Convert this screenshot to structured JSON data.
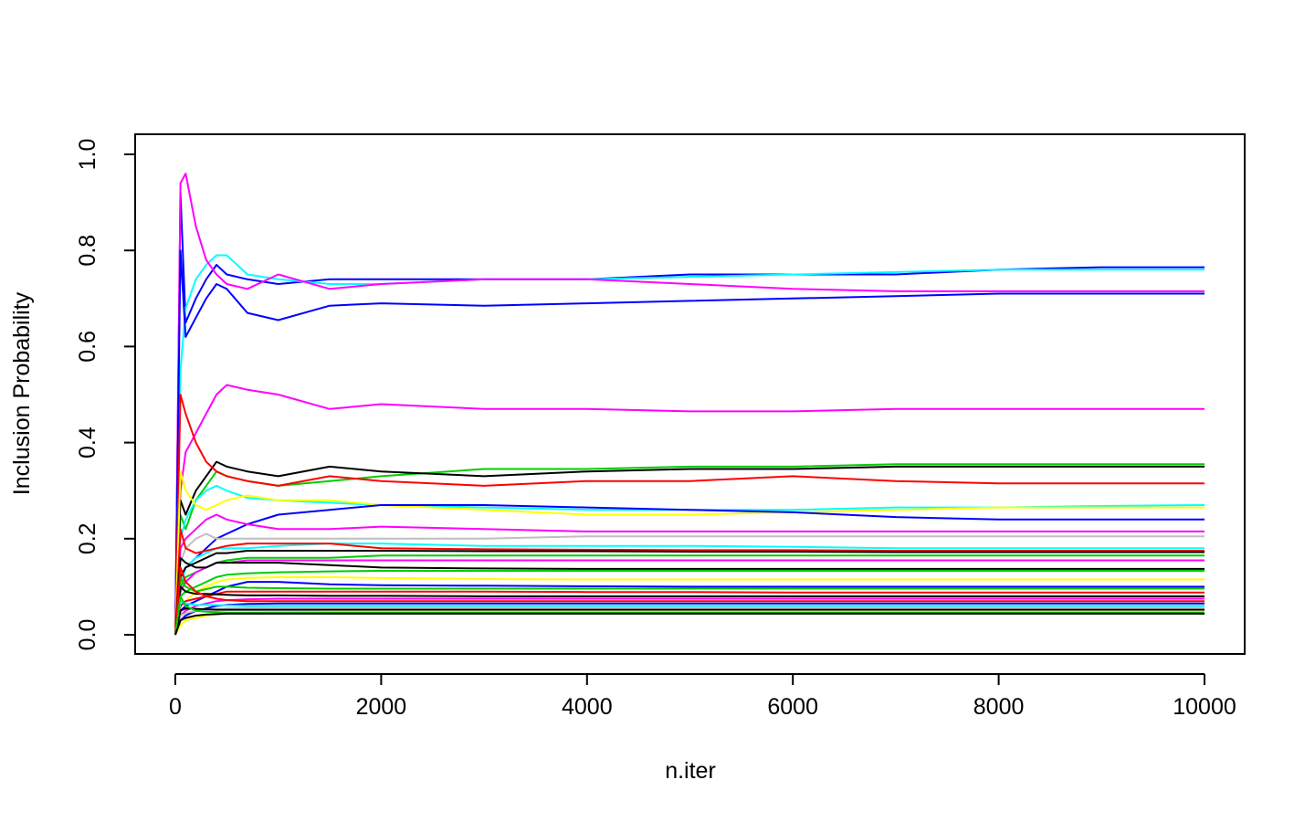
{
  "chart_data": {
    "type": "line",
    "title": "",
    "xlabel": "n.iter",
    "ylabel": "Inclusion Probability",
    "xlim": [
      0,
      10000
    ],
    "ylim": [
      0,
      1
    ],
    "x_ticks": [
      0,
      2000,
      4000,
      6000,
      8000,
      10000
    ],
    "x_tick_labels": [
      "0",
      "2000",
      "4000",
      "6000",
      "8000",
      "10000"
    ],
    "y_ticks": [
      0,
      0.2,
      0.4,
      0.6,
      0.8,
      1
    ],
    "y_tick_labels": [
      "0.0",
      "0.2",
      "0.4",
      "0.6",
      "0.8",
      "1.0"
    ],
    "grid": false,
    "legend": "none",
    "x": [
      0,
      50,
      100,
      200,
      300,
      400,
      500,
      700,
      1000,
      1500,
      2000,
      3000,
      4000,
      5000,
      6000,
      7000,
      8000,
      9000,
      10000
    ],
    "series": [
      {
        "color": "#0000ff",
        "values": [
          0.0,
          0.92,
          0.65,
          0.7,
          0.74,
          0.77,
          0.75,
          0.74,
          0.73,
          0.74,
          0.74,
          0.74,
          0.74,
          0.75,
          0.75,
          0.75,
          0.76,
          0.765,
          0.765
        ]
      },
      {
        "color": "#00ffff",
        "values": [
          0.0,
          0.55,
          0.68,
          0.74,
          0.77,
          0.79,
          0.79,
          0.75,
          0.74,
          0.73,
          0.73,
          0.74,
          0.74,
          0.745,
          0.75,
          0.755,
          0.76,
          0.76,
          0.76
        ]
      },
      {
        "color": "#ff00ff",
        "values": [
          0.0,
          0.94,
          0.96,
          0.85,
          0.78,
          0.75,
          0.73,
          0.72,
          0.75,
          0.72,
          0.73,
          0.74,
          0.74,
          0.73,
          0.72,
          0.715,
          0.715,
          0.715,
          0.715
        ]
      },
      {
        "color": "#0000ff",
        "values": [
          0.0,
          0.8,
          0.62,
          0.66,
          0.7,
          0.73,
          0.72,
          0.67,
          0.655,
          0.685,
          0.69,
          0.685,
          0.69,
          0.695,
          0.7,
          0.705,
          0.71,
          0.71,
          0.71
        ]
      },
      {
        "color": "#ff00ff",
        "values": [
          0.0,
          0.3,
          0.38,
          0.42,
          0.46,
          0.5,
          0.52,
          0.51,
          0.5,
          0.47,
          0.48,
          0.47,
          0.47,
          0.465,
          0.465,
          0.47,
          0.47,
          0.47,
          0.47
        ]
      },
      {
        "color": "#00cd00",
        "values": [
          0.0,
          0.25,
          0.22,
          0.28,
          0.31,
          0.34,
          0.33,
          0.32,
          0.31,
          0.32,
          0.33,
          0.345,
          0.345,
          0.35,
          0.35,
          0.355,
          0.355,
          0.355,
          0.355
        ]
      },
      {
        "color": "#000000",
        "values": [
          0.0,
          0.28,
          0.25,
          0.3,
          0.33,
          0.36,
          0.35,
          0.34,
          0.33,
          0.35,
          0.34,
          0.33,
          0.34,
          0.345,
          0.345,
          0.35,
          0.35,
          0.35,
          0.35
        ]
      },
      {
        "color": "#ff0000",
        "values": [
          0.0,
          0.5,
          0.46,
          0.4,
          0.36,
          0.34,
          0.33,
          0.32,
          0.31,
          0.33,
          0.32,
          0.31,
          0.32,
          0.32,
          0.33,
          0.32,
          0.315,
          0.315,
          0.315
        ]
      },
      {
        "color": "#00ffff",
        "values": [
          0.0,
          0.2,
          0.24,
          0.28,
          0.3,
          0.31,
          0.3,
          0.285,
          0.28,
          0.275,
          0.27,
          0.265,
          0.26,
          0.26,
          0.26,
          0.265,
          0.265,
          0.268,
          0.27
        ]
      },
      {
        "color": "#ffff00",
        "values": [
          0.0,
          0.34,
          0.3,
          0.27,
          0.26,
          0.27,
          0.28,
          0.29,
          0.28,
          0.28,
          0.27,
          0.26,
          0.25,
          0.25,
          0.255,
          0.26,
          0.265,
          0.265,
          0.265
        ]
      },
      {
        "color": "#0000ff",
        "values": [
          0.0,
          0.12,
          0.14,
          0.16,
          0.18,
          0.2,
          0.21,
          0.23,
          0.25,
          0.26,
          0.27,
          0.27,
          0.265,
          0.26,
          0.255,
          0.245,
          0.24,
          0.24,
          0.24
        ]
      },
      {
        "color": "#ff00ff",
        "values": [
          0.0,
          0.18,
          0.2,
          0.22,
          0.24,
          0.25,
          0.24,
          0.23,
          0.22,
          0.22,
          0.225,
          0.22,
          0.215,
          0.215,
          0.215,
          0.215,
          0.215,
          0.215,
          0.215
        ]
      },
      {
        "color": "#bebebe",
        "values": [
          0.0,
          0.15,
          0.18,
          0.2,
          0.21,
          0.2,
          0.2,
          0.2,
          0.2,
          0.2,
          0.2,
          0.2,
          0.205,
          0.205,
          0.205,
          0.205,
          0.205,
          0.205,
          0.205
        ]
      },
      {
        "color": "#00ffff",
        "values": [
          0.0,
          0.1,
          0.14,
          0.16,
          0.17,
          0.18,
          0.18,
          0.18,
          0.185,
          0.19,
          0.19,
          0.185,
          0.185,
          0.185,
          0.183,
          0.18,
          0.18,
          0.18,
          0.18
        ]
      },
      {
        "color": "#ff0000",
        "values": [
          0.0,
          0.22,
          0.18,
          0.17,
          0.175,
          0.18,
          0.185,
          0.19,
          0.19,
          0.19,
          0.18,
          0.178,
          0.177,
          0.176,
          0.176,
          0.175,
          0.175,
          0.175,
          0.175
        ]
      },
      {
        "color": "#000000",
        "values": [
          0.0,
          0.12,
          0.14,
          0.15,
          0.16,
          0.17,
          0.17,
          0.175,
          0.175,
          0.175,
          0.175,
          0.174,
          0.174,
          0.173,
          0.173,
          0.172,
          0.172,
          0.172,
          0.172
        ]
      },
      {
        "color": "#00cd00",
        "values": [
          0.0,
          0.1,
          0.12,
          0.13,
          0.14,
          0.15,
          0.155,
          0.16,
          0.16,
          0.16,
          0.165,
          0.165,
          0.165,
          0.165,
          0.165,
          0.165,
          0.165,
          0.165,
          0.165
        ]
      },
      {
        "color": "#ff00ff",
        "values": [
          0.0,
          0.09,
          0.11,
          0.13,
          0.14,
          0.15,
          0.15,
          0.155,
          0.155,
          0.155,
          0.155,
          0.155,
          0.155,
          0.155,
          0.155,
          0.155,
          0.155,
          0.155,
          0.155
        ]
      },
      {
        "color": "#000000",
        "values": [
          0.0,
          0.16,
          0.15,
          0.14,
          0.14,
          0.15,
          0.15,
          0.15,
          0.15,
          0.145,
          0.14,
          0.138,
          0.137,
          0.137,
          0.137,
          0.137,
          0.137,
          0.137,
          0.137
        ]
      },
      {
        "color": "#00cd00",
        "values": [
          0.0,
          0.08,
          0.09,
          0.1,
          0.11,
          0.12,
          0.125,
          0.128,
          0.13,
          0.132,
          0.133,
          0.133,
          0.133,
          0.133,
          0.133,
          0.133,
          0.133,
          0.133,
          0.133
        ]
      },
      {
        "color": "#ffff00",
        "values": [
          0.0,
          0.06,
          0.07,
          0.09,
          0.1,
          0.11,
          0.115,
          0.118,
          0.12,
          0.12,
          0.118,
          0.116,
          0.115,
          0.115,
          0.115,
          0.115,
          0.115,
          0.115,
          0.115
        ]
      },
      {
        "color": "#0000ff",
        "values": [
          0.0,
          0.05,
          0.06,
          0.07,
          0.08,
          0.09,
          0.1,
          0.11,
          0.11,
          0.105,
          0.103,
          0.102,
          0.101,
          0.1,
          0.1,
          0.1,
          0.1,
          0.1,
          0.1
        ]
      },
      {
        "color": "#00cd00",
        "values": [
          0.0,
          0.12,
          0.1,
          0.09,
          0.095,
          0.1,
          0.1,
          0.098,
          0.097,
          0.096,
          0.096,
          0.096,
          0.096,
          0.096,
          0.096,
          0.096,
          0.096,
          0.096,
          0.096
        ]
      },
      {
        "color": "#ff0000",
        "values": [
          0.0,
          0.06,
          0.07,
          0.075,
          0.08,
          0.085,
          0.09,
          0.09,
          0.09,
          0.09,
          0.09,
          0.09,
          0.089,
          0.089,
          0.088,
          0.088,
          0.088,
          0.088,
          0.088
        ]
      },
      {
        "color": "#000000",
        "values": [
          0.0,
          0.1,
          0.09,
          0.085,
          0.085,
          0.084,
          0.083,
          0.082,
          0.082,
          0.081,
          0.081,
          0.08,
          0.08,
          0.08,
          0.08,
          0.08,
          0.08,
          0.08,
          0.08
        ]
      },
      {
        "color": "#ff00ff",
        "values": [
          0.0,
          0.04,
          0.05,
          0.06,
          0.065,
          0.07,
          0.072,
          0.074,
          0.075,
          0.075,
          0.075,
          0.075,
          0.075,
          0.075,
          0.075,
          0.075,
          0.075,
          0.075,
          0.075
        ]
      },
      {
        "color": "#ff0000",
        "values": [
          0.0,
          0.14,
          0.11,
          0.09,
          0.08,
          0.075,
          0.072,
          0.07,
          0.07,
          0.07,
          0.07,
          0.07,
          0.07,
          0.07,
          0.07,
          0.07,
          0.07,
          0.07,
          0.07
        ]
      },
      {
        "color": "#0000ff",
        "values": [
          0.0,
          0.03,
          0.04,
          0.05,
          0.055,
          0.06,
          0.062,
          0.064,
          0.065,
          0.065,
          0.065,
          0.065,
          0.065,
          0.065,
          0.065,
          0.065,
          0.065,
          0.065,
          0.065
        ]
      },
      {
        "color": "#00ffff",
        "values": [
          0.0,
          0.07,
          0.065,
          0.062,
          0.062,
          0.062,
          0.061,
          0.06,
          0.06,
          0.06,
          0.06,
          0.06,
          0.06,
          0.06,
          0.06,
          0.06,
          0.06,
          0.06,
          0.06
        ]
      },
      {
        "color": "#bebebe",
        "values": [
          0.0,
          0.04,
          0.045,
          0.05,
          0.052,
          0.054,
          0.055,
          0.056,
          0.056,
          0.056,
          0.056,
          0.056,
          0.056,
          0.056,
          0.056,
          0.056,
          0.056,
          0.056,
          0.056
        ]
      },
      {
        "color": "#000000",
        "values": [
          0.0,
          0.05,
          0.055,
          0.054,
          0.053,
          0.052,
          0.052,
          0.052,
          0.052,
          0.052,
          0.052,
          0.052,
          0.052,
          0.052,
          0.052,
          0.052,
          0.052,
          0.052,
          0.052
        ]
      },
      {
        "color": "#ffff00",
        "values": [
          0.0,
          0.02,
          0.03,
          0.035,
          0.04,
          0.042,
          0.045,
          0.046,
          0.047,
          0.048,
          0.048,
          0.048,
          0.048,
          0.048,
          0.048,
          0.048,
          0.048,
          0.048,
          0.048
        ]
      },
      {
        "color": "#00cd00",
        "values": [
          0.0,
          0.08,
          0.06,
          0.05,
          0.048,
          0.047,
          0.046,
          0.046,
          0.046,
          0.046,
          0.046,
          0.046,
          0.046,
          0.046,
          0.046,
          0.046,
          0.046,
          0.046,
          0.046
        ]
      },
      {
        "color": "#000000",
        "values": [
          0.0,
          0.03,
          0.035,
          0.04,
          0.042,
          0.043,
          0.044,
          0.044,
          0.044,
          0.044,
          0.044,
          0.044,
          0.044,
          0.044,
          0.044,
          0.044,
          0.044,
          0.044,
          0.044
        ]
      }
    ]
  }
}
